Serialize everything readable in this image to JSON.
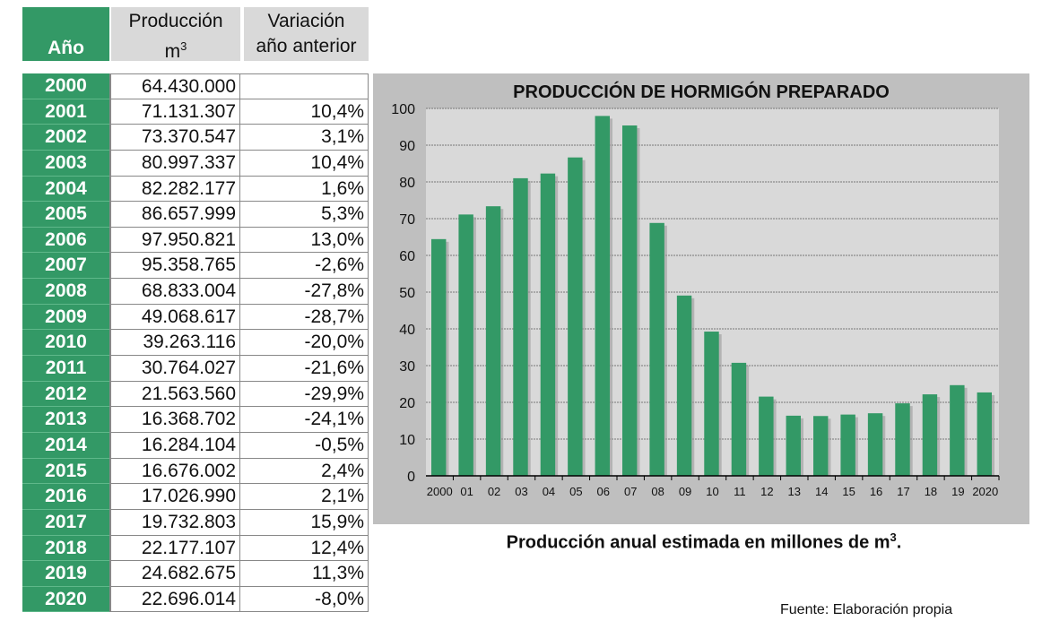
{
  "table": {
    "headers": {
      "year": "Año",
      "production_line1": "Producción",
      "production_line2": "m",
      "production_sup": "3",
      "variation_line1": "Variación",
      "variation_line2": "año anterior"
    },
    "rows": [
      {
        "year": "2000",
        "production": "64.430.000",
        "variation": ""
      },
      {
        "year": "2001",
        "production": "71.131.307",
        "variation": "10,4%"
      },
      {
        "year": "2002",
        "production": "73.370.547",
        "variation": "3,1%"
      },
      {
        "year": "2003",
        "production": "80.997.337",
        "variation": "10,4%"
      },
      {
        "year": "2004",
        "production": "82.282.177",
        "variation": "1,6%"
      },
      {
        "year": "2005",
        "production": "86.657.999",
        "variation": "5,3%"
      },
      {
        "year": "2006",
        "production": "97.950.821",
        "variation": "13,0%"
      },
      {
        "year": "2007",
        "production": "95.358.765",
        "variation": "-2,6%"
      },
      {
        "year": "2008",
        "production": "68.833.004",
        "variation": "-27,8%"
      },
      {
        "year": "2009",
        "production": "49.068.617",
        "variation": "-28,7%"
      },
      {
        "year": "2010",
        "production": "39.263.116",
        "variation": "-20,0%"
      },
      {
        "year": "2011",
        "production": "30.764.027",
        "variation": "-21,6%"
      },
      {
        "year": "2012",
        "production": "21.563.560",
        "variation": "-29,9%"
      },
      {
        "year": "2013",
        "production": "16.368.702",
        "variation": "-24,1%"
      },
      {
        "year": "2014",
        "production": "16.284.104",
        "variation": "-0,5%"
      },
      {
        "year": "2015",
        "production": "16.676.002",
        "variation": "2,4%"
      },
      {
        "year": "2016",
        "production": "17.026.990",
        "variation": "2,1%"
      },
      {
        "year": "2017",
        "production": "19.732.803",
        "variation": "15,9%"
      },
      {
        "year": "2018",
        "production": "22.177.107",
        "variation": "12,4%"
      },
      {
        "year": "2019",
        "production": "24.682.675",
        "variation": "11,3%"
      },
      {
        "year": "2020",
        "production": "22.696.014",
        "variation": "-8,0%"
      }
    ]
  },
  "chart_data": {
    "type": "bar",
    "title": "PRODUCCIÓN DE HORMIGÓN PREPARADO",
    "categories": [
      "2000",
      "01",
      "02",
      "03",
      "04",
      "05",
      "06",
      "07",
      "08",
      "09",
      "10",
      "11",
      "12",
      "13",
      "14",
      "15",
      "16",
      "17",
      "18",
      "19",
      "2020"
    ],
    "values": [
      64.43,
      71.13,
      73.37,
      81.0,
      82.28,
      86.66,
      97.95,
      95.36,
      68.83,
      49.07,
      39.26,
      30.76,
      21.56,
      16.37,
      16.28,
      16.68,
      17.03,
      19.73,
      22.18,
      24.68,
      22.7
    ],
    "yticks": [
      "0",
      "10",
      "20",
      "30",
      "40",
      "50",
      "60",
      "70",
      "80",
      "90",
      "100"
    ],
    "ylim": [
      0,
      100
    ],
    "grid": true,
    "bar_color": "#339966"
  },
  "caption": {
    "text": "Producción anual estimada en millones de m",
    "sup": "3",
    "end": "."
  },
  "source": "Fuente: Elaboración propia"
}
